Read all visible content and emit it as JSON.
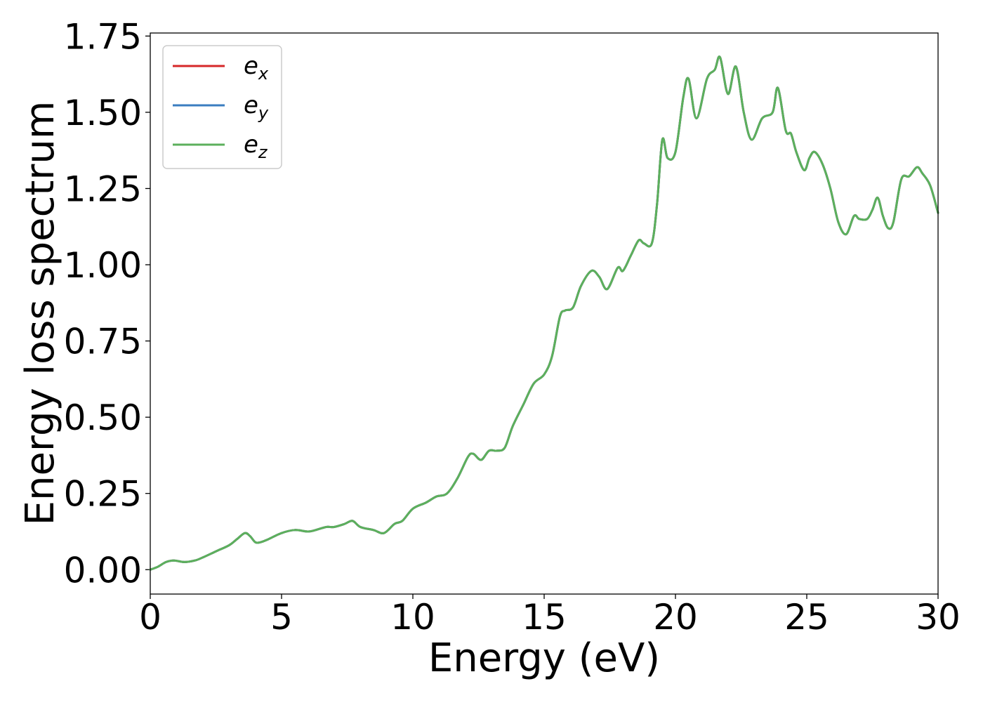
{
  "chart_data": {
    "type": "line",
    "title": "",
    "xlabel": "Energy (eV)",
    "ylabel": "Energy loss spectrum",
    "xlim": [
      0,
      30
    ],
    "ylim": [
      -0.08,
      1.76
    ],
    "x_ticks": [
      0,
      5,
      10,
      15,
      20,
      25,
      30
    ],
    "x_tick_labels": [
      "0",
      "5",
      "10",
      "15",
      "20",
      "25",
      "30"
    ],
    "y_ticks": [
      0,
      0.25,
      0.5,
      0.75,
      1.0,
      1.25,
      1.5,
      1.75
    ],
    "y_tick_labels": [
      "0.00",
      "0.25",
      "0.50",
      "0.75",
      "1.00",
      "1.25",
      "1.50",
      "1.75"
    ],
    "grid": false,
    "legend_position": "top-left",
    "x": [
      0,
      0.3,
      0.6,
      0.9,
      1.3,
      1.7,
      2.0,
      2.5,
      3.0,
      3.3,
      3.6,
      3.8,
      4.0,
      4.2,
      4.5,
      5.0,
      5.5,
      6.0,
      6.3,
      6.7,
      7.0,
      7.4,
      7.7,
      8.0,
      8.5,
      8.9,
      9.3,
      9.6,
      10.0,
      10.5,
      10.9,
      11.3,
      11.7,
      12.1,
      12.3,
      12.6,
      12.9,
      13.2,
      13.5,
      13.8,
      14.2,
      14.6,
      15.0,
      15.3,
      15.6,
      15.8,
      16.1,
      16.4,
      16.8,
      17.1,
      17.4,
      17.8,
      18.0,
      18.3,
      18.6,
      18.8,
      19.1,
      19.3,
      19.5,
      19.7,
      20.0,
      20.3,
      20.5,
      20.8,
      21.2,
      21.5,
      21.7,
      22.0,
      22.3,
      22.6,
      22.9,
      23.3,
      23.7,
      23.9,
      24.2,
      24.4,
      24.6,
      24.9,
      25.1,
      25.3,
      25.6,
      25.9,
      26.2,
      26.5,
      26.8,
      27.0,
      27.3,
      27.5,
      27.7,
      27.9,
      28.1,
      28.3,
      28.6,
      28.9,
      29.2,
      29.4,
      29.7,
      30.0
    ],
    "series": [
      {
        "name": "e_x",
        "color": "#d62728",
        "values": [
          0.0,
          0.01,
          0.025,
          0.03,
          0.025,
          0.03,
          0.04,
          0.06,
          0.08,
          0.1,
          0.12,
          0.11,
          0.09,
          0.09,
          0.1,
          0.12,
          0.13,
          0.125,
          0.13,
          0.14,
          0.14,
          0.15,
          0.16,
          0.14,
          0.13,
          0.12,
          0.15,
          0.16,
          0.2,
          0.22,
          0.24,
          0.25,
          0.3,
          0.37,
          0.38,
          0.36,
          0.39,
          0.39,
          0.4,
          0.47,
          0.54,
          0.61,
          0.64,
          0.7,
          0.83,
          0.85,
          0.86,
          0.93,
          0.98,
          0.96,
          0.92,
          0.99,
          0.98,
          1.03,
          1.08,
          1.07,
          1.07,
          1.2,
          1.41,
          1.35,
          1.37,
          1.55,
          1.61,
          1.48,
          1.61,
          1.64,
          1.68,
          1.56,
          1.65,
          1.5,
          1.41,
          1.48,
          1.5,
          1.58,
          1.44,
          1.43,
          1.37,
          1.31,
          1.35,
          1.37,
          1.33,
          1.25,
          1.14,
          1.1,
          1.16,
          1.15,
          1.15,
          1.18,
          1.22,
          1.16,
          1.12,
          1.14,
          1.28,
          1.29,
          1.32,
          1.3,
          1.26,
          1.17
        ]
      },
      {
        "name": "e_y",
        "color": "#3a7dc0",
        "values": [
          0.0,
          0.01,
          0.025,
          0.03,
          0.025,
          0.03,
          0.04,
          0.06,
          0.08,
          0.1,
          0.12,
          0.11,
          0.09,
          0.09,
          0.1,
          0.12,
          0.13,
          0.125,
          0.13,
          0.14,
          0.14,
          0.15,
          0.16,
          0.14,
          0.13,
          0.12,
          0.15,
          0.16,
          0.2,
          0.22,
          0.24,
          0.25,
          0.3,
          0.37,
          0.38,
          0.36,
          0.39,
          0.39,
          0.4,
          0.47,
          0.54,
          0.61,
          0.64,
          0.7,
          0.83,
          0.85,
          0.86,
          0.93,
          0.98,
          0.96,
          0.92,
          0.99,
          0.98,
          1.03,
          1.08,
          1.07,
          1.07,
          1.2,
          1.41,
          1.35,
          1.37,
          1.55,
          1.61,
          1.48,
          1.61,
          1.64,
          1.68,
          1.56,
          1.65,
          1.5,
          1.41,
          1.48,
          1.5,
          1.58,
          1.44,
          1.43,
          1.37,
          1.31,
          1.35,
          1.37,
          1.33,
          1.25,
          1.14,
          1.1,
          1.16,
          1.15,
          1.15,
          1.18,
          1.22,
          1.16,
          1.12,
          1.14,
          1.28,
          1.29,
          1.32,
          1.3,
          1.26,
          1.17
        ]
      },
      {
        "name": "e_z",
        "color": "#5cb05c",
        "values": [
          0.0,
          0.01,
          0.025,
          0.03,
          0.025,
          0.03,
          0.04,
          0.06,
          0.08,
          0.1,
          0.12,
          0.11,
          0.09,
          0.09,
          0.1,
          0.12,
          0.13,
          0.125,
          0.13,
          0.14,
          0.14,
          0.15,
          0.16,
          0.14,
          0.13,
          0.12,
          0.15,
          0.16,
          0.2,
          0.22,
          0.24,
          0.25,
          0.3,
          0.37,
          0.38,
          0.36,
          0.39,
          0.39,
          0.4,
          0.47,
          0.54,
          0.61,
          0.64,
          0.7,
          0.83,
          0.85,
          0.86,
          0.93,
          0.98,
          0.96,
          0.92,
          0.99,
          0.98,
          1.03,
          1.08,
          1.07,
          1.07,
          1.2,
          1.41,
          1.35,
          1.37,
          1.55,
          1.61,
          1.48,
          1.61,
          1.64,
          1.68,
          1.56,
          1.65,
          1.5,
          1.41,
          1.48,
          1.5,
          1.58,
          1.44,
          1.43,
          1.37,
          1.31,
          1.35,
          1.37,
          1.33,
          1.25,
          1.14,
          1.1,
          1.16,
          1.15,
          1.15,
          1.18,
          1.22,
          1.16,
          1.12,
          1.14,
          1.28,
          1.29,
          1.32,
          1.3,
          1.26,
          1.17
        ]
      }
    ],
    "legend": [
      {
        "base": "e",
        "sub": "x"
      },
      {
        "base": "e",
        "sub": "y"
      },
      {
        "base": "e",
        "sub": "z"
      }
    ]
  }
}
